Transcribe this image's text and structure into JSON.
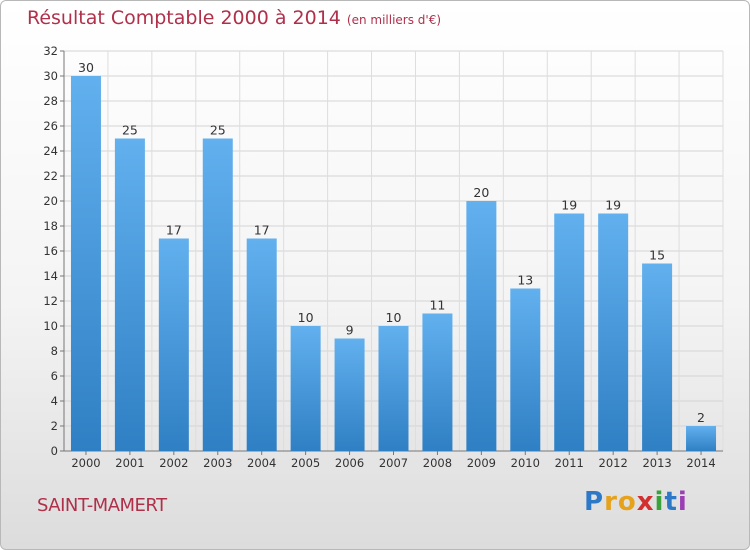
{
  "title": "Résultat Comptable 2000 à 2014",
  "unit_note": "(en milliers d'€)",
  "commune": "SAINT-MAMERT",
  "brand": {
    "letters": [
      "P",
      "r",
      "o",
      "x",
      "i",
      "t",
      "i"
    ],
    "colors": [
      "#2e78c8",
      "#e6a21a",
      "#e6a21a",
      "#d42f2f",
      "#3aa23a",
      "#2e78c8",
      "#9c3fb4"
    ]
  },
  "colors": {
    "title": "#b0304a",
    "bar_light": "#62b0ee",
    "bar_dark": "#2f7fc4"
  },
  "chart_data": {
    "type": "bar",
    "categories": [
      "2000",
      "2001",
      "2002",
      "2003",
      "2004",
      "2005",
      "2006",
      "2007",
      "2008",
      "2009",
      "2010",
      "2011",
      "2012",
      "2013",
      "2014"
    ],
    "values": [
      30,
      25,
      17,
      25,
      17,
      10,
      9,
      10,
      11,
      20,
      13,
      19,
      19,
      15,
      2
    ],
    "yticks": [
      0,
      2,
      4,
      6,
      8,
      10,
      12,
      14,
      16,
      18,
      20,
      22,
      24,
      26,
      28,
      30,
      32
    ],
    "ylim": [
      0,
      32
    ],
    "grid": true
  }
}
